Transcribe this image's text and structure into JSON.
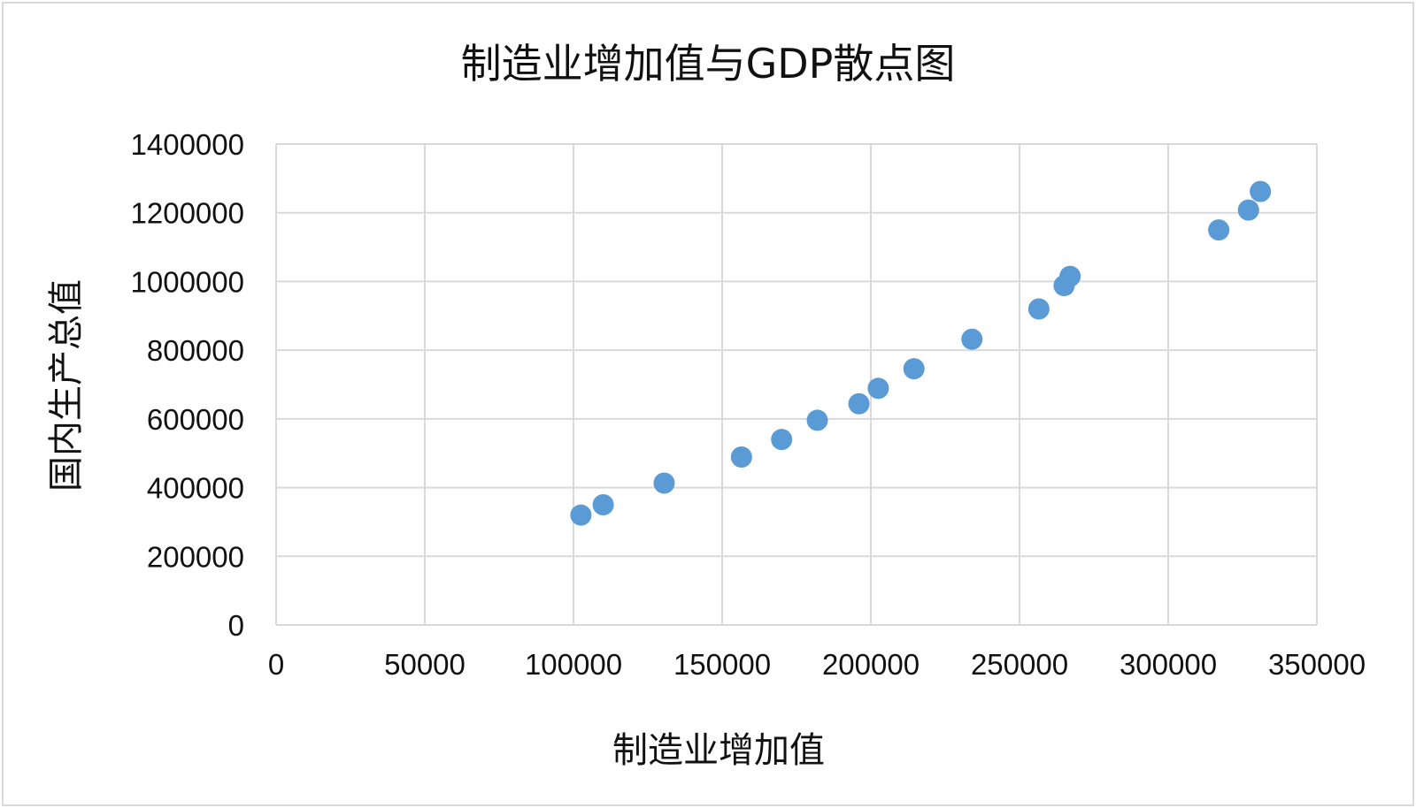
{
  "chart_data": {
    "type": "scatter",
    "title": "制造业增加值与GDP散点图",
    "xlabel": "制造业增加值",
    "ylabel": "国内生产总值",
    "xlim": [
      0,
      350000
    ],
    "ylim": [
      0,
      1400000
    ],
    "xticks": [
      "0",
      "50000",
      "100000",
      "150000",
      "200000",
      "250000",
      "300000",
      "350000"
    ],
    "yticks": [
      "0",
      "200000",
      "400000",
      "600000",
      "800000",
      "1000000",
      "1200000",
      "1400000"
    ],
    "grid": true,
    "legend": "none",
    "marker_color": "#5b9bd5",
    "series": [
      {
        "points": [
          {
            "x": 102500,
            "y": 320000
          },
          {
            "x": 110000,
            "y": 350000
          },
          {
            "x": 130500,
            "y": 413000
          },
          {
            "x": 156500,
            "y": 489000
          },
          {
            "x": 170000,
            "y": 540000
          },
          {
            "x": 182000,
            "y": 596000
          },
          {
            "x": 196000,
            "y": 644000
          },
          {
            "x": 202500,
            "y": 689000
          },
          {
            "x": 214500,
            "y": 746000
          },
          {
            "x": 234000,
            "y": 832000
          },
          {
            "x": 256500,
            "y": 920000
          },
          {
            "x": 265000,
            "y": 988000
          },
          {
            "x": 267000,
            "y": 1015000
          },
          {
            "x": 317000,
            "y": 1150000
          },
          {
            "x": 327000,
            "y": 1208000
          },
          {
            "x": 331000,
            "y": 1262000
          }
        ]
      }
    ]
  }
}
